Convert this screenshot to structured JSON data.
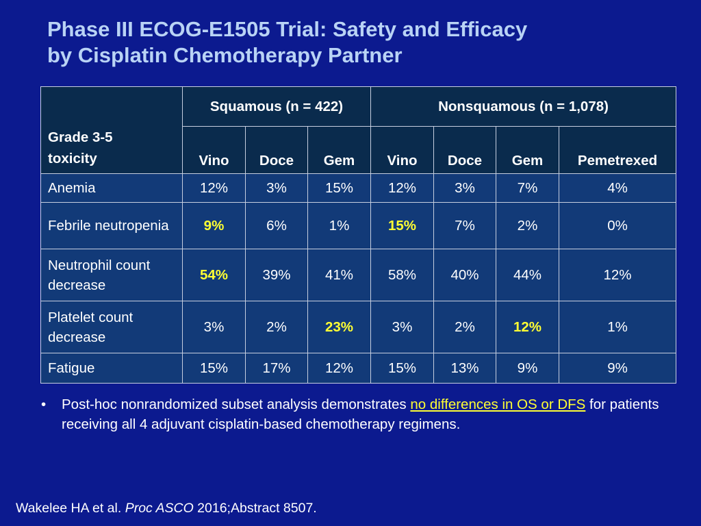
{
  "title": {
    "line1": "Phase III ECOG-E1505 Trial: Safety and Efficacy",
    "line2": "by Cisplatin Chemotherapy Partner"
  },
  "table": {
    "corner": "Grade 3-5 toxicity",
    "groups": [
      "Squamous (n = 422)",
      "Nonsquamous (n = 1,078)"
    ],
    "columns": [
      "Vino",
      "Doce",
      "Gem",
      "Vino",
      "Doce",
      "Gem",
      "Pemetrexed"
    ],
    "rows": [
      {
        "label": "Anemia",
        "values": [
          "12%",
          "3%",
          "15%",
          "12%",
          "3%",
          "7%",
          "4%"
        ]
      },
      {
        "label": "Febrile neutropenia",
        "values": [
          "9%",
          "6%",
          "1%",
          "15%",
          "7%",
          "2%",
          "0%"
        ]
      },
      {
        "label": "Neutrophil count decrease",
        "values": [
          "54%",
          "39%",
          "41%",
          "58%",
          "40%",
          "44%",
          "12%"
        ]
      },
      {
        "label": "Platelet count decrease",
        "values": [
          "3%",
          "2%",
          "23%",
          "3%",
          "2%",
          "12%",
          "1%"
        ]
      },
      {
        "label": "Fatigue",
        "values": [
          "15%",
          "17%",
          "12%",
          "15%",
          "13%",
          "9%",
          "9%"
        ]
      }
    ],
    "highlight_color": "#ffff33"
  },
  "bullet": {
    "marker": "•",
    "before": "Post-hoc nonrandomized subset analysis demonstrates ",
    "highlight": "no differences in OS or DFS",
    "after": " for patients receiving all 4 adjuvant cisplatin-based chemotherapy regimens."
  },
  "citation": {
    "authors": "Wakelee HA et al. ",
    "journal": "Proc ASCO",
    "rest": " 2016;Abstract 8507."
  },
  "colors": {
    "background": "#0c1a8f",
    "title": "#b9d3f5",
    "header_cells": "#0a2b4d",
    "body_cells": "#123a78"
  }
}
